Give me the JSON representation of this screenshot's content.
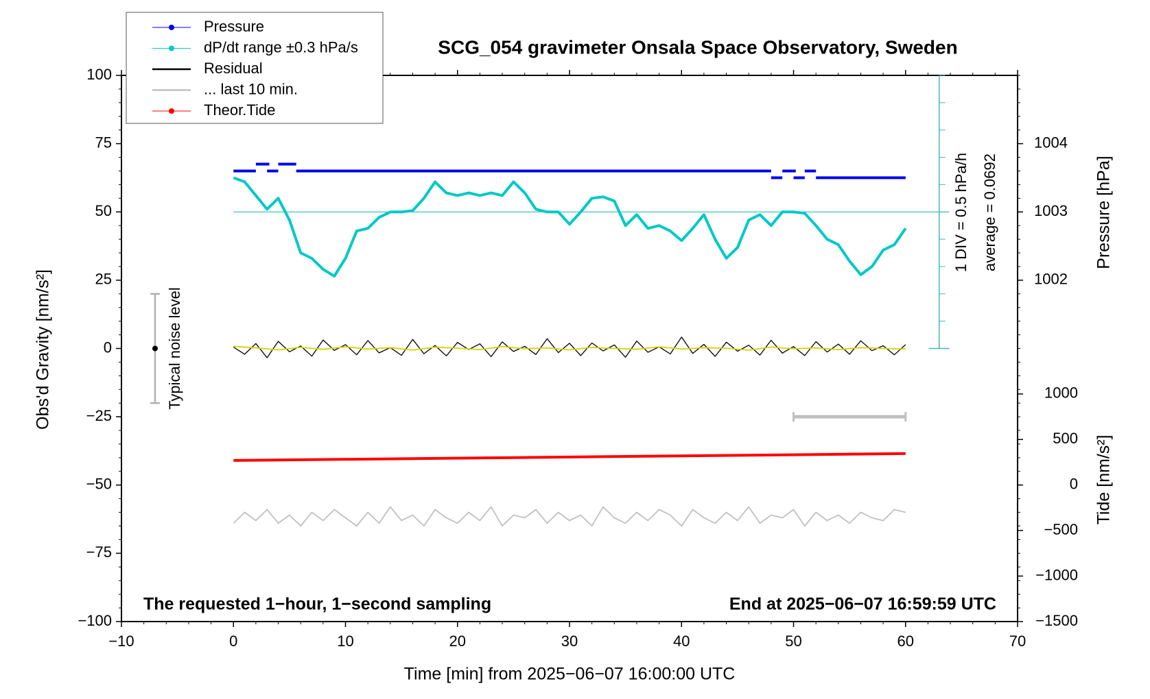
{
  "chart_data": {
    "type": "line",
    "title": "SCG_054 gravimeter Onsala Space Observatory, Sweden",
    "xlabel": "Time [min] from 2025−06−07 16:00:00 UTC",
    "ylabel": "Obs'd Gravity [nm/s²]",
    "y2label": "Pressure [hPa]",
    "y3label": "Tide [nm/s²]",
    "xlim": [
      -10,
      70
    ],
    "xticks": [
      {
        "value": -10,
        "label": "−10"
      },
      0,
      10,
      20,
      30,
      40,
      50,
      60,
      70
    ],
    "ylim": [
      -100,
      100
    ],
    "yticks": [
      {
        "value": -100,
        "label": "−100"
      },
      {
        "value": -75,
        "label": "−75"
      },
      {
        "value": -50,
        "label": "−50"
      },
      {
        "value": -25,
        "label": "−25"
      },
      0,
      25,
      50,
      75,
      100
    ],
    "y2lim": [
      997,
      1005
    ],
    "y2ticks": [
      1002,
      1003,
      1004
    ],
    "y3lim": [
      -1500,
      4500
    ],
    "y3ticks": [
      {
        "value": -1500,
        "label": "−1500"
      },
      {
        "value": -1000,
        "label": "−1000"
      },
      {
        "value": -500,
        "label": "−500"
      },
      0,
      500,
      1000
    ],
    "legend": "top-left",
    "annotations": [
      "The requested 1−hour, 1−second sampling",
      "End at 2025−06−07 16:59:59 UTC",
      "1 DIV = 0.5 hPa/h",
      "average = 0.0692"
    ],
    "average_level": 50,
    "noise_level": {
      "label": "Typical noise level",
      "x": -7,
      "value": 0,
      "error": 20
    },
    "last_10_min_window": {
      "x": [
        50,
        60
      ],
      "value": -25,
      "color": "#c0c0c0"
    },
    "smoothed": {
      "color": "#d4d400",
      "x": [
        0,
        2,
        4,
        6,
        8,
        10,
        12,
        14,
        16,
        18,
        20,
        22,
        24,
        26,
        28,
        30,
        32,
        34,
        36,
        38,
        40,
        42,
        44,
        46,
        48,
        50,
        52,
        54,
        56,
        58,
        60
      ],
      "values": [
        0.8,
        0.2,
        -0.5,
        0.4,
        -0.3,
        0.6,
        -0.2,
        0.3,
        -0.6,
        0.5,
        0.1,
        -0.4,
        0.7,
        -0.1,
        0.2,
        -0.5,
        0.4,
        0.0,
        -0.3,
        0.6,
        -0.2,
        0.3,
        0.1,
        -0.6,
        0.5,
        -0.1,
        0.2,
        -0.4,
        0.3,
        0.0,
        -0.2
      ]
    },
    "series": [
      {
        "name": "Pressure",
        "color": "#0000ee",
        "axis": "y2",
        "marker": true,
        "x": [
          0,
          2,
          2,
          2,
          3.2,
          3.2,
          3,
          4,
          4,
          4,
          5.6,
          5.6,
          5.6,
          48,
          48,
          48,
          49,
          49,
          49,
          50.2,
          50.2,
          50,
          51,
          51,
          51,
          52,
          52,
          52,
          60
        ],
        "values": [
          1003.6,
          1003.6,
          null,
          1003.7,
          1003.7,
          null,
          1003.6,
          1003.6,
          null,
          1003.7,
          1003.7,
          null,
          1003.6,
          1003.6,
          null,
          1003.5,
          1003.5,
          null,
          1003.6,
          1003.6,
          null,
          1003.5,
          1003.5,
          null,
          1003.6,
          1003.6,
          null,
          1003.5,
          1003.5
        ]
      },
      {
        "name": "dP/dt range ±0.3 hPa/s",
        "color": "#00c8c8",
        "axis": "y",
        "marker": true,
        "x": [
          0,
          1,
          2,
          3,
          4,
          5,
          6,
          7,
          8,
          9,
          10,
          11,
          12,
          13,
          14,
          15,
          16,
          17,
          18,
          19,
          20,
          21,
          22,
          23,
          24,
          25,
          26,
          27,
          28,
          29,
          30,
          31,
          32,
          33,
          34,
          35,
          36,
          37,
          38,
          39,
          40,
          41,
          42,
          43,
          44,
          45,
          46,
          47,
          48,
          49,
          50,
          51,
          52,
          53,
          54,
          55,
          56,
          57,
          58,
          59,
          60
        ],
        "values": [
          62.5,
          61,
          56,
          51,
          55,
          47,
          35,
          33,
          29,
          26.5,
          33,
          43,
          44,
          48,
          50,
          50,
          50.5,
          55,
          61,
          57,
          56,
          57,
          56,
          57,
          56,
          61,
          57,
          51,
          50,
          50,
          45.5,
          50,
          55,
          55.5,
          54,
          45,
          49,
          44,
          45,
          43,
          39.5,
          44,
          49,
          40,
          33,
          37,
          47,
          49,
          45,
          50,
          50,
          49.5,
          45,
          40,
          38,
          32,
          27,
          30,
          36,
          38,
          44
        ]
      },
      {
        "name": "Residual",
        "color": "#000000",
        "axis": "y",
        "marker": false,
        "x": [
          0,
          1,
          2,
          3,
          4,
          5,
          6,
          7,
          8,
          9,
          10,
          11,
          12,
          13,
          14,
          15,
          16,
          17,
          18,
          19,
          20,
          21,
          22,
          23,
          24,
          25,
          26,
          27,
          28,
          29,
          30,
          31,
          32,
          33,
          34,
          35,
          36,
          37,
          38,
          39,
          40,
          41,
          42,
          43,
          44,
          45,
          46,
          47,
          48,
          49,
          50,
          51,
          52,
          53,
          54,
          55,
          56,
          57,
          58,
          59,
          60
        ],
        "values": [
          0.5,
          -2.1,
          1.8,
          -3.4,
          2.6,
          -1.2,
          0.9,
          -2.8,
          3.1,
          -0.7,
          1.4,
          -2.3,
          2.9,
          -1.6,
          0.3,
          -2.5,
          3.3,
          -1.9,
          1.1,
          -2.7,
          2.2,
          -0.4,
          1.7,
          -3.0,
          2.4,
          -1.1,
          0.8,
          -2.2,
          3.6,
          -1.5,
          1.9,
          -2.6,
          2.0,
          -0.9,
          1.3,
          -3.2,
          2.7,
          -1.4,
          0.6,
          -2.0,
          4.2,
          -1.8,
          1.5,
          -2.9,
          2.3,
          -1.0,
          1.2,
          -2.4,
          3.0,
          -1.7,
          0.7,
          -2.6,
          2.5,
          -1.3,
          1.6,
          -2.1,
          2.8,
          -0.8,
          1.0,
          -2.3,
          1.4
        ]
      },
      {
        "name": "... last 10 min.",
        "color": "#c0c0c0",
        "axis": "y",
        "marker": false,
        "x": [
          0,
          1,
          2,
          3,
          4,
          5,
          6,
          7,
          8,
          9,
          10,
          11,
          12,
          13,
          14,
          15,
          16,
          17,
          18,
          19,
          20,
          21,
          22,
          23,
          24,
          25,
          26,
          27,
          28,
          29,
          30,
          31,
          32,
          33,
          34,
          35,
          36,
          37,
          38,
          39,
          40,
          41,
          42,
          43,
          44,
          45,
          46,
          47,
          48,
          49,
          50,
          51,
          52,
          53,
          54,
          55,
          56,
          57,
          58,
          59,
          60
        ],
        "values": [
          -64,
          -60,
          -63,
          -59,
          -64,
          -61,
          -65,
          -60,
          -63,
          -59,
          -62,
          -65,
          -60,
          -64,
          -58,
          -63,
          -61,
          -65,
          -59,
          -62,
          -64,
          -60,
          -63,
          -58,
          -65,
          -61,
          -62,
          -59,
          -64,
          -60,
          -63,
          -61,
          -65,
          -58,
          -62,
          -64,
          -60,
          -63,
          -59,
          -61,
          -65,
          -59,
          -62,
          -64,
          -60,
          -63,
          -58,
          -64,
          -61,
          -62,
          -59,
          -65,
          -60,
          -63,
          -61,
          -64,
          -60,
          -62,
          -63,
          -59,
          -60
        ]
      },
      {
        "name": "Theor.Tide",
        "color": "#ff0000",
        "axis": "y3",
        "marker": true,
        "x": [
          0,
          60
        ],
        "values": [
          270,
          345
        ]
      }
    ]
  }
}
